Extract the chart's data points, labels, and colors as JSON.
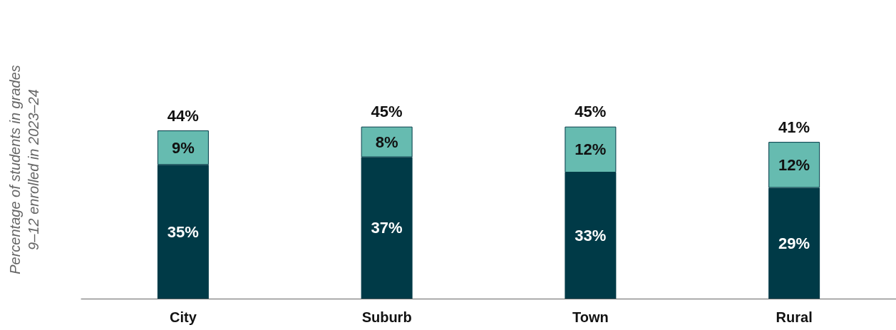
{
  "chart_data": {
    "type": "bar",
    "stacked": true,
    "ylabel": "Percentage of students in grades 9–12 enrolled in 2023–24",
    "categories": [
      "City",
      "Suburb",
      "Town",
      "Rural"
    ],
    "series": [
      {
        "color": "#003a47",
        "values": [
          35,
          37,
          33,
          29
        ],
        "value_labels": [
          "35%",
          "37%",
          "33%",
          "29%"
        ]
      },
      {
        "color": "#66bbb0",
        "values": [
          9,
          8,
          12,
          12
        ],
        "value_labels": [
          "9%",
          "8%",
          "12%",
          "12%"
        ]
      }
    ],
    "totals": [
      "44%",
      "45%",
      "45%",
      "41%"
    ],
    "grid": false
  }
}
